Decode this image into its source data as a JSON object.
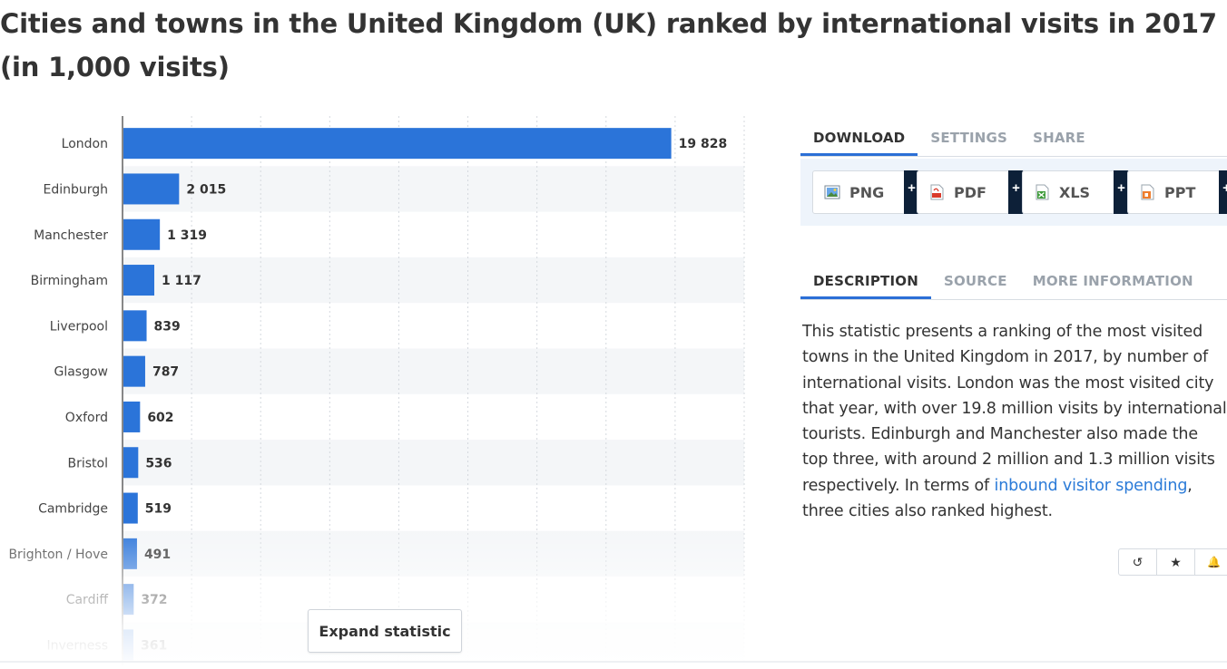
{
  "title": "Cities and towns in the United Kingdom (UK) ranked by international visits in 2017 (in 1,000 visits)",
  "chart_data": {
    "type": "bar",
    "orientation": "horizontal",
    "categories": [
      "London",
      "Edinburgh",
      "Manchester",
      "Birmingham",
      "Liverpool",
      "Glasgow",
      "Oxford",
      "Bristol",
      "Cambridge",
      "Brighton / Hove",
      "Cardiff",
      "Inverness"
    ],
    "values": [
      19828,
      2015,
      1319,
      1117,
      839,
      787,
      602,
      536,
      519,
      491,
      372,
      361
    ],
    "value_labels": [
      "19 828",
      "2 015",
      "1 319",
      "1 117",
      "839",
      "787",
      "602",
      "536",
      "519",
      "491",
      "372",
      "361"
    ],
    "xlim": [
      0,
      22500
    ],
    "grid": true,
    "color": "#2b74d9"
  },
  "expand_label": "Expand statistic",
  "download_tabs": [
    {
      "label": "DOWNLOAD",
      "active": true
    },
    {
      "label": "SETTINGS",
      "active": false
    },
    {
      "label": "SHARE",
      "active": false
    }
  ],
  "download_buttons": [
    {
      "label": "PNG",
      "icon": "png-file-icon",
      "plus": "+"
    },
    {
      "label": "PDF",
      "icon": "pdf-file-icon",
      "plus": "+"
    },
    {
      "label": "XLS",
      "icon": "xls-file-icon",
      "plus": "+"
    },
    {
      "label": "PPT",
      "icon": "ppt-file-icon",
      "plus": "+"
    }
  ],
  "info_tabs": [
    {
      "label": "DESCRIPTION",
      "active": true
    },
    {
      "label": "SOURCE",
      "active": false
    },
    {
      "label": "MORE INFORMATION",
      "active": false
    }
  ],
  "description": {
    "before_link": "This statistic presents a ranking of the most visited towns in the United Kingdom in 2017, by number of international visits. London was the most visited city that year, with over 19.8 million visits by international tourists. Edinburgh and Manchester also made the top three, with around 2 million and 1.3 million visits respectively. In terms of ",
    "link": "inbound visitor spending",
    "after_link": ", three cities also ranked highest."
  },
  "actions": [
    {
      "name": "history-icon",
      "glyph": "↺"
    },
    {
      "name": "star-icon",
      "glyph": "★"
    },
    {
      "name": "bell-icon",
      "glyph": "🔔"
    }
  ]
}
